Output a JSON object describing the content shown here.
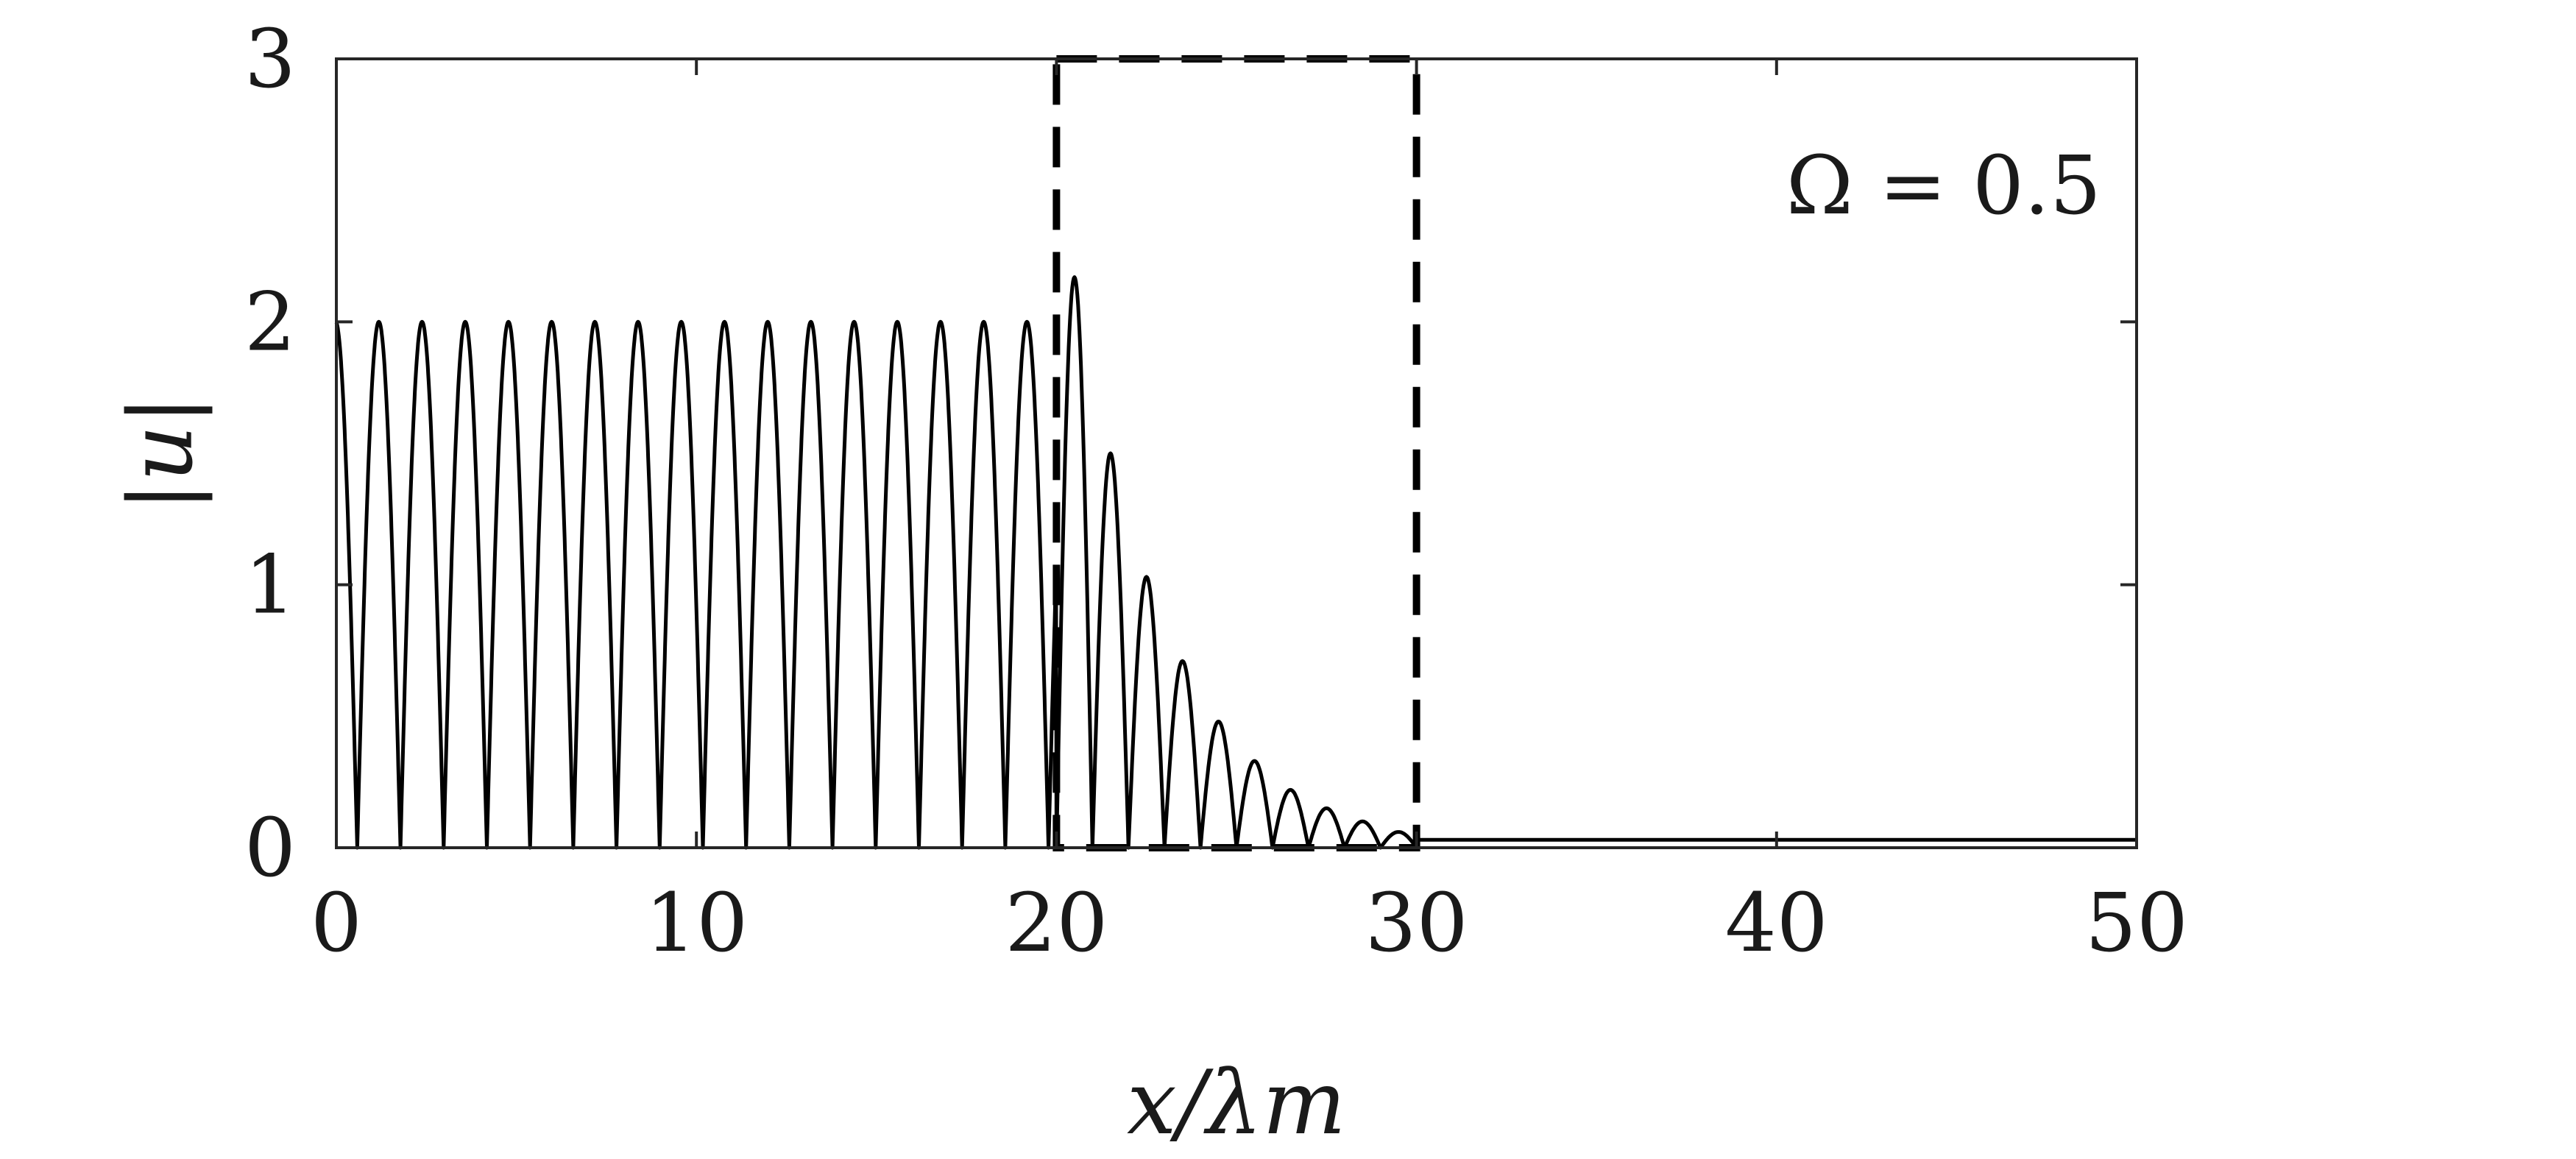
{
  "chart_data": {
    "type": "line",
    "title": "",
    "xlabel": "x/λm",
    "ylabel": "|u|",
    "xlim": [
      0,
      50
    ],
    "ylim": [
      0,
      3
    ],
    "x_ticks": [
      "0",
      "10",
      "20",
      "30",
      "40",
      "50"
    ],
    "y_ticks": [
      "0",
      "1",
      "2",
      "3"
    ],
    "grid": false,
    "legend": "none",
    "annotation": "Ω = 0.5",
    "line_color": "#000000",
    "box_color": "#000000",
    "region_box": {
      "x": [
        20,
        30
      ],
      "y": [
        0,
        3
      ]
    },
    "series": [
      {
        "description_points": [
          {
            "x": 0.0,
            "y": 1.95
          },
          {
            "x": 0.6,
            "y": 0.0
          },
          {
            "x": 1.2,
            "y": 2.0
          },
          {
            "x": 20.0,
            "y": 0.0
          },
          {
            "x": 20.5,
            "y": 2.17
          },
          {
            "x": 21.1,
            "y": 0.0
          },
          {
            "x": 21.6,
            "y": 1.5
          },
          {
            "x": 22.3,
            "y": 1.03
          },
          {
            "x": 23.0,
            "y": 0.71
          },
          {
            "x": 24.2,
            "y": 0.48
          },
          {
            "x": 25.2,
            "y": 0.33
          },
          {
            "x": 26.3,
            "y": 0.22
          },
          {
            "x": 27.3,
            "y": 0.15
          },
          {
            "x": 28.3,
            "y": 0.1
          },
          {
            "x": 29.2,
            "y": 0.06
          },
          {
            "x": 30.0,
            "y": 0.03
          },
          {
            "x": 50.0,
            "y": 0.03
          }
        ],
        "uniform_period": 1.2,
        "uniform_amplitude": 2.0,
        "uniform_range": [
          0,
          20
        ],
        "decay_peaks": [
          2.17,
          1.5,
          1.03,
          0.71,
          0.48,
          0.33,
          0.22,
          0.15,
          0.1,
          0.06
        ],
        "decay_range": [
          20,
          30
        ],
        "tail_value": 0.03,
        "tail_range": [
          30,
          50
        ]
      }
    ]
  }
}
